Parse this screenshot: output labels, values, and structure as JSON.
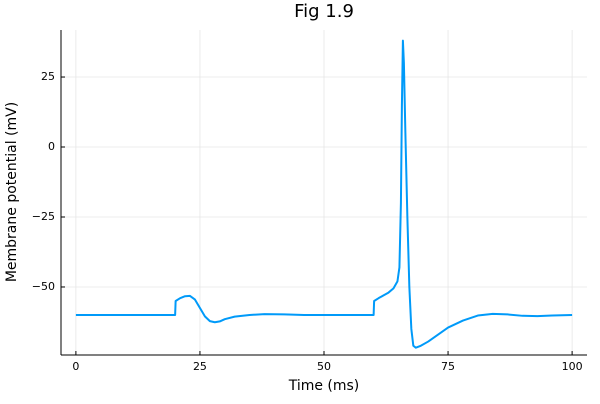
{
  "chart_data": {
    "type": "line",
    "title": "Fig 1.9",
    "x_label": "Time (ms)",
    "y_label": "Membrane potential (mV)",
    "x": [
      0,
      20,
      20.1,
      21,
      22,
      23,
      24,
      25,
      26,
      27,
      28,
      29,
      30,
      32,
      35,
      38,
      42,
      46,
      55,
      60,
      60.1,
      61,
      62,
      63,
      64,
      64.8,
      65.2,
      65.5,
      65.7,
      65.9,
      66.1,
      66.4,
      66.8,
      67.2,
      67.6,
      68,
      68.5,
      69.5,
      71,
      73,
      75,
      78,
      81,
      84,
      87,
      90,
      93,
      96,
      100
    ],
    "series": [
      {
        "name": "y1",
        "color": "#009af9",
        "values": [
          -60,
          -60,
          -55,
          -54,
          -53.3,
          -53.2,
          -54.5,
          -57.5,
          -60.5,
          -62.2,
          -62.6,
          -62.3,
          -61.5,
          -60.6,
          -60,
          -59.7,
          -59.8,
          -60,
          -60,
          -60,
          -55,
          -54,
          -53,
          -52,
          -50.5,
          -48,
          -43,
          -20,
          15,
          38,
          30,
          5,
          -25,
          -50,
          -65,
          -71,
          -71.7,
          -71,
          -69.5,
          -67,
          -64.5,
          -62,
          -60.2,
          -59.6,
          -59.8,
          -60.3,
          -60.4,
          -60.2,
          -60
        ]
      }
    ],
    "xlim": [
      -3,
      103
    ],
    "xticks": [
      0,
      25,
      50,
      75,
      100
    ],
    "ylim": [
      -74.3,
      41.8
    ],
    "yticks": [
      {
        "value": -50,
        "label": "−50"
      },
      {
        "value": -25,
        "label": "−25"
      },
      0,
      25
    ],
    "grid": true
  }
}
